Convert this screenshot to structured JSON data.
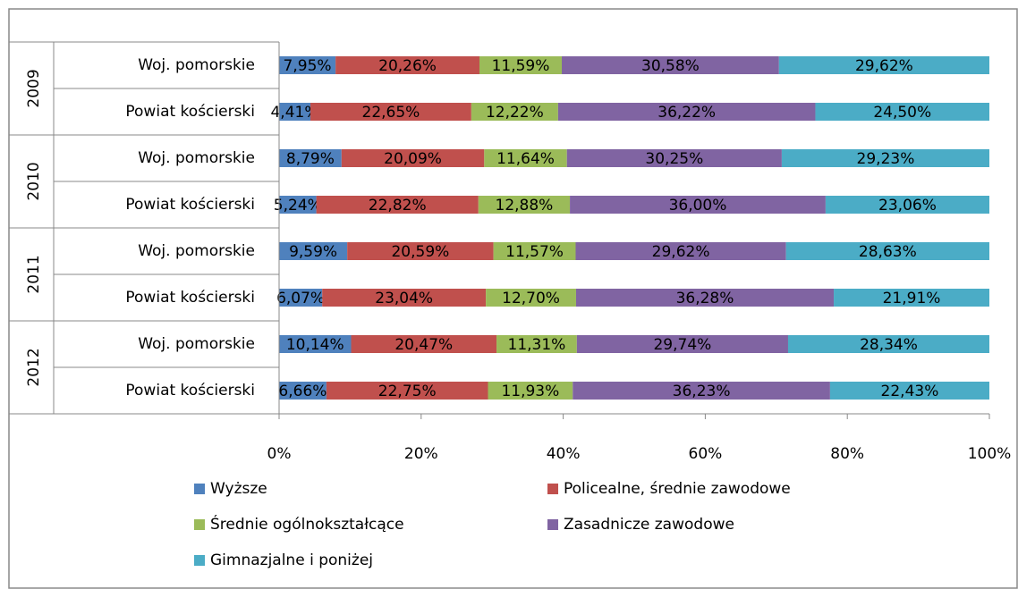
{
  "chart_data": {
    "type": "stacked_barh",
    "groups": [
      "2009",
      "2010",
      "2011",
      "2012"
    ],
    "categories": [
      "Woj. pomorskie",
      "Powiat kościerski",
      "Woj. pomorskie",
      "Powiat kościerski",
      "Woj. pomorskie",
      "Powiat kościerski",
      "Woj. pomorskie",
      "Powiat kościerski"
    ],
    "series": [
      {
        "name": "Wyższe",
        "color": "#4f81bd",
        "values": [
          7.95,
          4.41,
          8.79,
          5.24,
          9.59,
          6.07,
          10.14,
          6.66
        ],
        "value_labels": [
          "7,95%",
          "4,41%",
          "8,79%",
          "5,24%",
          "9,59%",
          "6,07%",
          "10,14%",
          "6,66%"
        ]
      },
      {
        "name": "Policealne, średnie zawodowe",
        "color": "#c0504d",
        "values": [
          20.26,
          22.65,
          20.09,
          22.82,
          20.59,
          23.04,
          20.47,
          22.75
        ],
        "value_labels": [
          "20,26%",
          "22,65%",
          "20,09%",
          "22,82%",
          "20,59%",
          "23,04%",
          "20,47%",
          "22,75%"
        ]
      },
      {
        "name": "Średnie ogólnokształcące",
        "color": "#9bbb59",
        "values": [
          11.59,
          12.22,
          11.64,
          12.88,
          11.57,
          12.7,
          11.31,
          11.93
        ],
        "value_labels": [
          "11,59%",
          "12,22%",
          "11,64%",
          "12,88%",
          "11,57%",
          "12,70%",
          "11,31%",
          "11,93%"
        ]
      },
      {
        "name": "Zasadnicze zawodowe",
        "color": "#8064a2",
        "values": [
          30.58,
          36.22,
          30.25,
          36.0,
          29.62,
          36.28,
          29.74,
          36.23
        ],
        "value_labels": [
          "30,58%",
          "36,22%",
          "30,25%",
          "36,00%",
          "29,62%",
          "36,28%",
          "29,74%",
          "36,23%"
        ]
      },
      {
        "name": "Gimnazjalne i poniżej",
        "color": "#4bacc6",
        "values": [
          29.62,
          24.5,
          29.23,
          23.06,
          28.63,
          21.91,
          28.34,
          22.43
        ],
        "value_labels": [
          "29,62%",
          "24,50%",
          "29,23%",
          "23,06%",
          "28,63%",
          "21,91%",
          "28,34%",
          "22,43%"
        ]
      }
    ],
    "xlim": [
      0,
      100
    ],
    "xticks": [
      {
        "value": 0,
        "label": "0%"
      },
      {
        "value": 20,
        "label": "20%"
      },
      {
        "value": 40,
        "label": "40%"
      },
      {
        "value": 60,
        "label": "60%"
      },
      {
        "value": 80,
        "label": "80%"
      },
      {
        "value": 100,
        "label": "100%"
      }
    ],
    "legend": "bottom"
  }
}
